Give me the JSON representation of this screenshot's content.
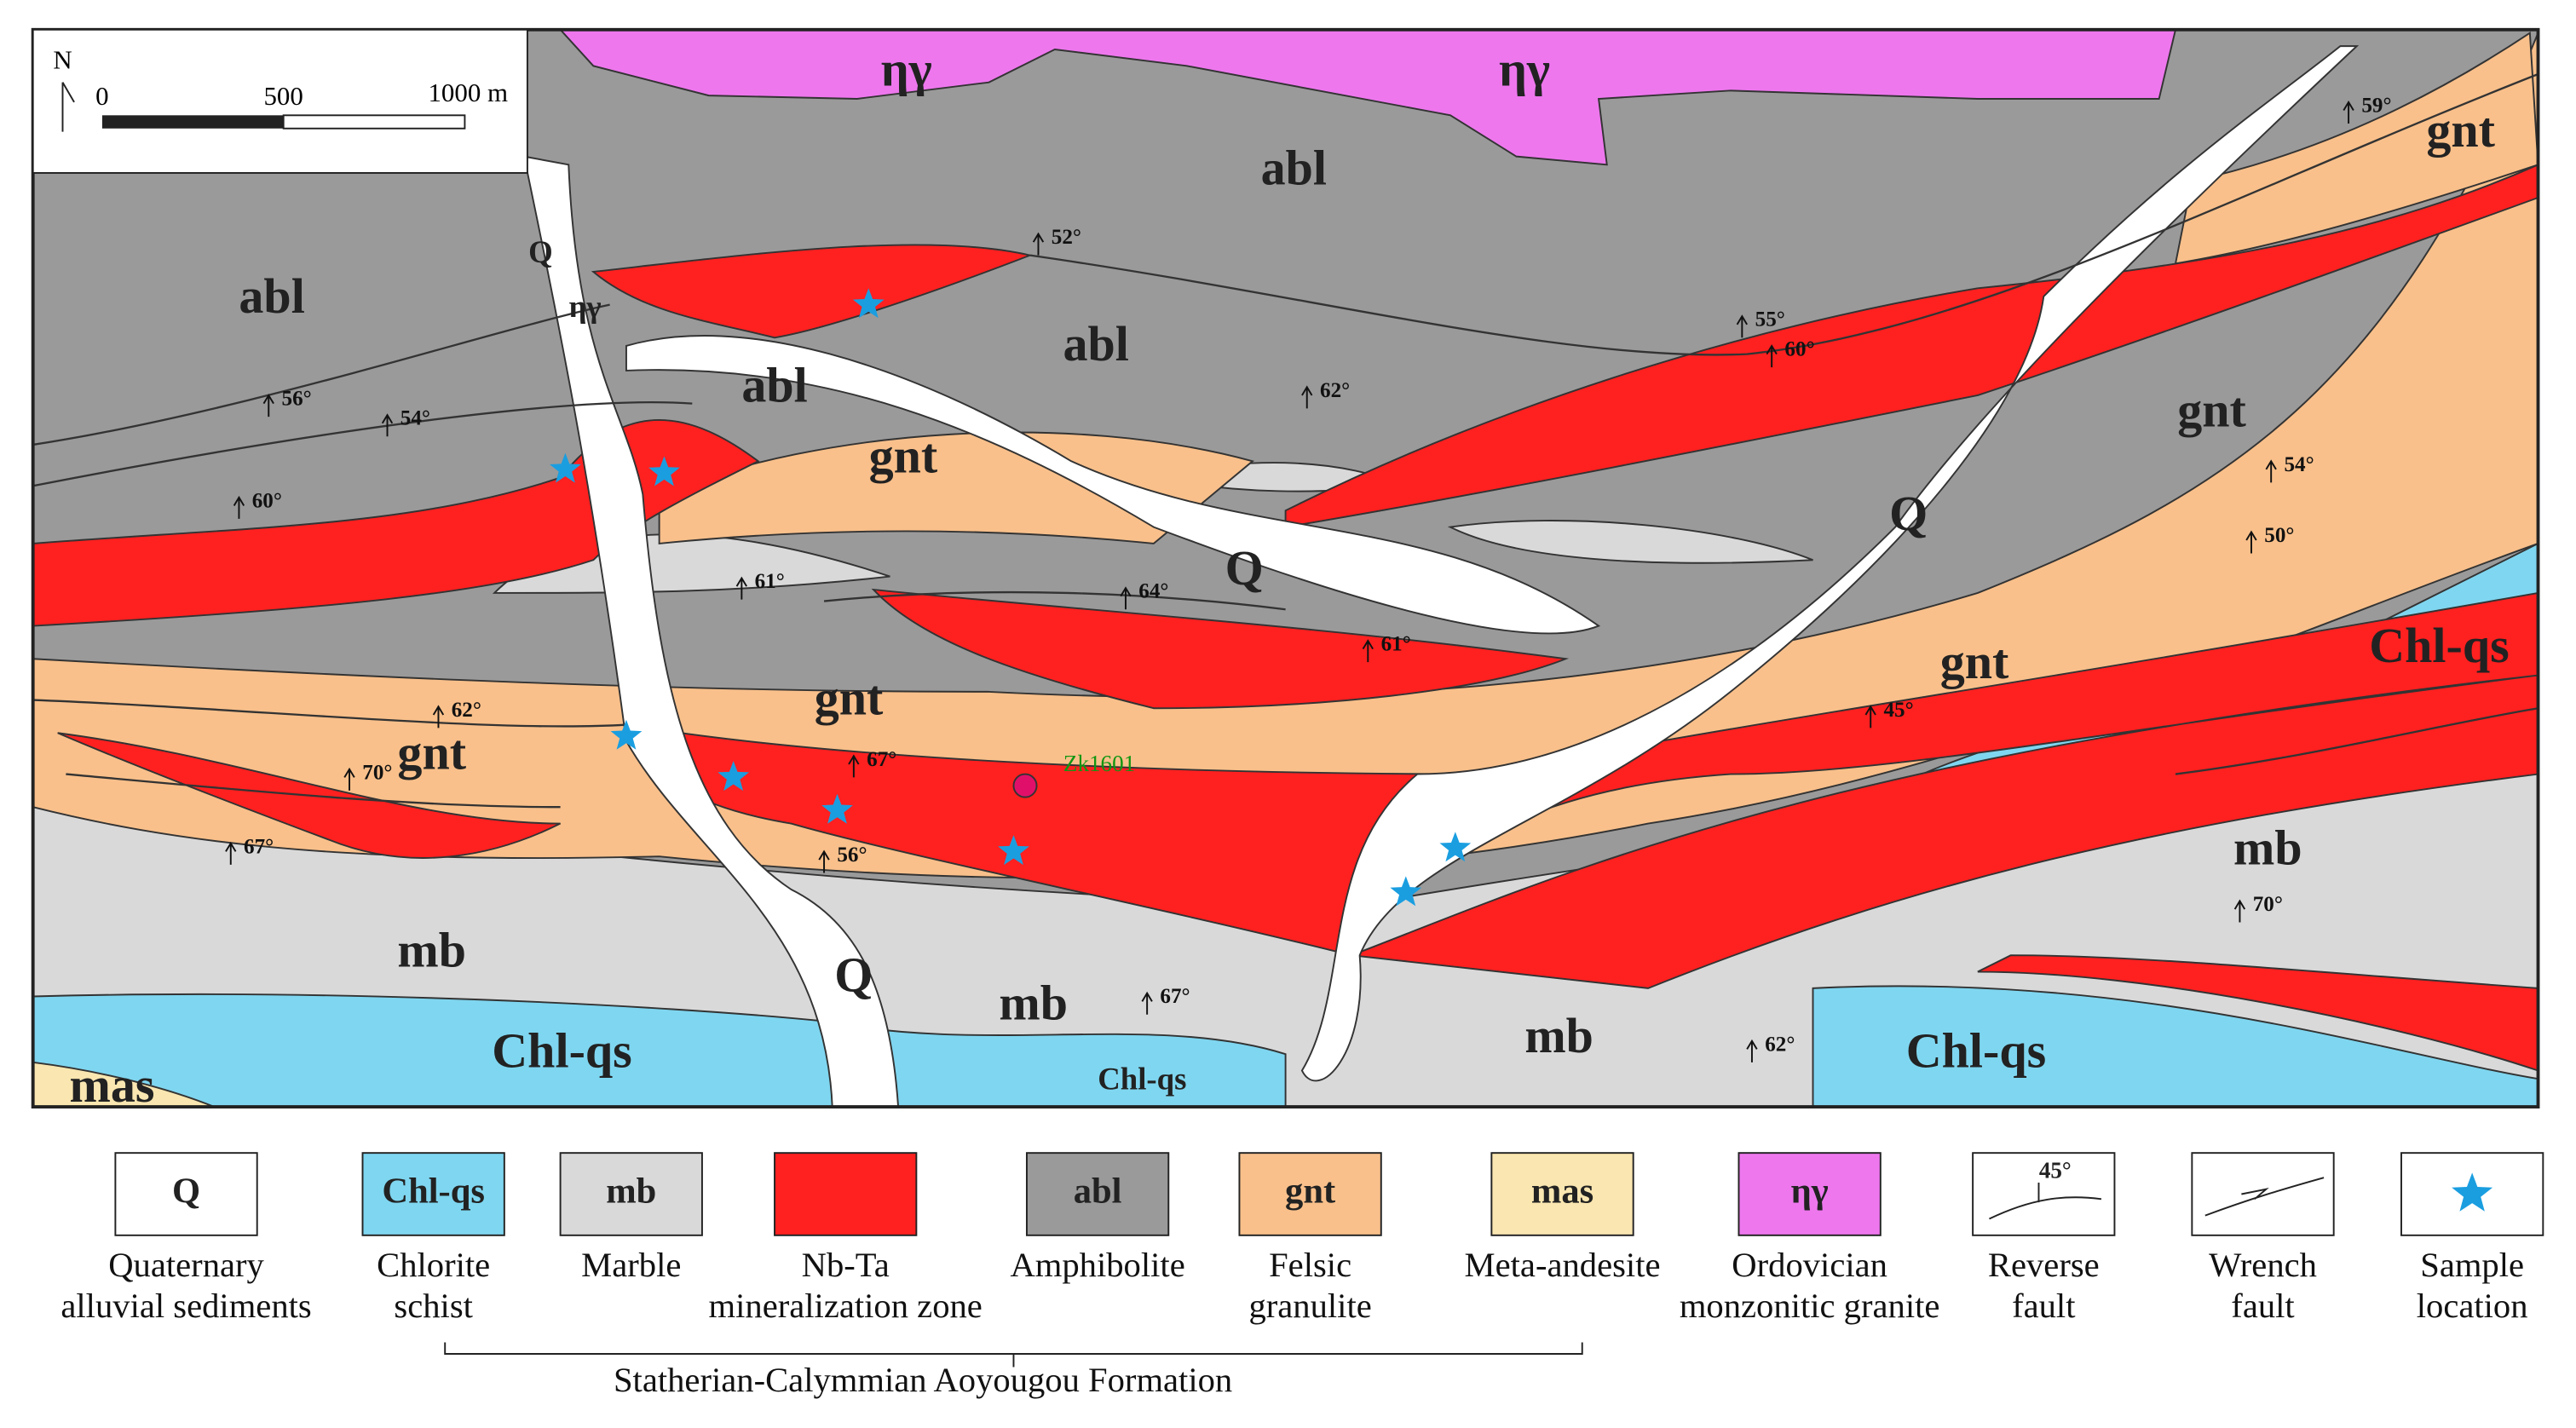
{
  "scale_bar": {
    "north": "N",
    "labels": [
      "0",
      "500",
      "1000 m"
    ]
  },
  "map_labels": [
    "ηγ",
    "ηγ",
    "ηγ",
    "abl",
    "abl",
    "abl",
    "abl",
    "Q",
    "Q",
    "Q",
    "Q",
    "gnt",
    "gnt",
    "gnt",
    "gnt",
    "gnt",
    "gnt",
    "Chl-qs",
    "Chl-qs",
    "Chl-qs",
    "Chl-qs",
    "mb",
    "mb",
    "mb",
    "mb",
    "mas"
  ],
  "dip_labels": [
    "52°",
    "59°",
    "55°",
    "60°",
    "62°",
    "56°",
    "54°",
    "60°",
    "54°",
    "50°",
    "61°",
    "64°",
    "61°",
    "45°",
    "62°",
    "70°",
    "67°",
    "56°",
    "67°",
    "70°",
    "67°",
    "62°"
  ],
  "drill_hole": "Zk1601",
  "legend": {
    "items": [
      {
        "symbol": "Q",
        "caption": [
          "Quaternary",
          "alluvial sediments"
        ]
      },
      {
        "symbol": "Chl-qs",
        "caption": [
          "Chlorite",
          "schist"
        ]
      },
      {
        "symbol": "mb",
        "caption": [
          "Marble"
        ]
      },
      {
        "caption": [
          "Nb-Ta",
          "mineralization zone"
        ]
      },
      {
        "symbol": "abl",
        "caption": [
          "Amphibolite"
        ]
      },
      {
        "symbol": "gnt",
        "caption": [
          "Felsic",
          "granulite"
        ]
      },
      {
        "symbol": "mas",
        "caption": [
          "Meta-andesite"
        ]
      },
      {
        "symbol": "ηγ",
        "caption": [
          "Ordovician",
          "monzonitic granite"
        ]
      },
      {
        "symbol": "45°",
        "caption": [
          "Reverse",
          "fault"
        ]
      },
      {
        "caption": [
          "Wrench",
          "fault"
        ]
      },
      {
        "caption": [
          "Sample",
          "location"
        ]
      }
    ],
    "formation": "Statherian-Calymmian Aoyougou Formation"
  }
}
